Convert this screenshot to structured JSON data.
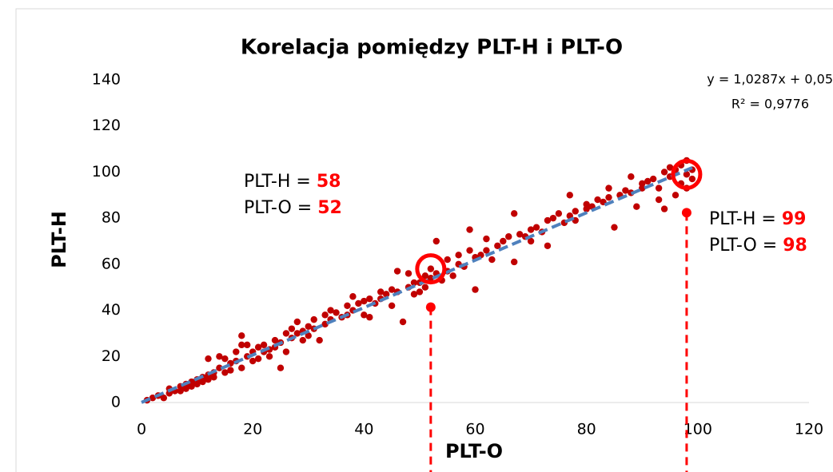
{
  "chart_data": {
    "type": "scatter",
    "title": "Korelacja pomiędzy PLT-H i PLT-O",
    "x_label": "PLT-O",
    "y_label": "PLT-H",
    "xlim": [
      0,
      120
    ],
    "ylim": [
      0,
      140
    ],
    "xticks": [
      0,
      20,
      40,
      60,
      80,
      {
        "value": 100,
        "label": "100"
      },
      120
    ],
    "yticks": [
      0,
      20,
      40,
      60,
      80,
      100,
      120,
      140
    ],
    "color": "#c00000",
    "x": [
      1,
      2,
      3,
      4,
      5,
      5,
      6,
      7,
      7,
      8,
      8,
      9,
      9,
      10,
      10,
      11,
      11,
      12,
      12,
      12,
      13,
      13,
      14,
      14,
      15,
      15,
      16,
      16,
      17,
      17,
      18,
      18,
      18,
      19,
      19,
      20,
      20,
      21,
      21,
      22,
      22,
      23,
      23,
      24,
      24,
      25,
      25,
      26,
      26,
      27,
      27,
      28,
      28,
      29,
      29,
      30,
      30,
      31,
      31,
      32,
      33,
      33,
      34,
      34,
      35,
      36,
      37,
      37,
      38,
      38,
      39,
      40,
      40,
      41,
      41,
      42,
      43,
      43,
      44,
      45,
      45,
      46,
      46,
      47,
      48,
      48,
      49,
      49,
      50,
      50,
      51,
      51,
      52,
      52,
      53,
      53,
      54,
      55,
      55,
      56,
      57,
      57,
      58,
      59,
      59,
      60,
      60,
      61,
      62,
      62,
      63,
      64,
      65,
      66,
      67,
      67,
      68,
      69,
      70,
      70,
      71,
      72,
      73,
      73,
      74,
      75,
      76,
      77,
      77,
      78,
      78,
      80,
      80,
      81,
      82,
      83,
      84,
      84,
      85,
      86,
      87,
      88,
      88,
      89,
      90,
      90,
      91,
      92,
      93,
      93,
      94,
      94,
      95,
      95,
      96,
      96,
      97,
      97,
      98,
      98,
      98,
      99,
      99
    ],
    "y": [
      1,
      2,
      3,
      2,
      4,
      6,
      5,
      7,
      5,
      8,
      6,
      9,
      7,
      10,
      8,
      11,
      9,
      12,
      10,
      19,
      13,
      11,
      15,
      20,
      13,
      19,
      17,
      14,
      22,
      18,
      29,
      25,
      15,
      20,
      25,
      18,
      22,
      24,
      19,
      25,
      22,
      23,
      20,
      27,
      24,
      15,
      26,
      30,
      22,
      32,
      28,
      35,
      30,
      31,
      27,
      33,
      29,
      36,
      32,
      27,
      38,
      34,
      40,
      36,
      39,
      37,
      42,
      38,
      40,
      46,
      43,
      38,
      44,
      45,
      37,
      43,
      48,
      45,
      47,
      49,
      42,
      57,
      48,
      35,
      50,
      56,
      47,
      52,
      52,
      48,
      55,
      50,
      58,
      54,
      70,
      56,
      53,
      57,
      62,
      55,
      60,
      64,
      59,
      66,
      75,
      63,
      49,
      64,
      66,
      71,
      62,
      68,
      70,
      72,
      82,
      61,
      73,
      72,
      75,
      70,
      76,
      74,
      79,
      68,
      80,
      82,
      78,
      81,
      90,
      83,
      79,
      84,
      86,
      85,
      88,
      87,
      93,
      89,
      76,
      90,
      92,
      91,
      98,
      85,
      95,
      93,
      96,
      97,
      93,
      88,
      100,
      84,
      102,
      98,
      101,
      90,
      103,
      95,
      99,
      105,
      93,
      97,
      101
    ],
    "trendline": {
      "slope": 1.0287,
      "intercept": 0.05,
      "color": "#4f81bd",
      "equation": "y = 1,0287x + 0,05",
      "r2": "R² = 0,9776"
    },
    "annotations": [
      {
        "h_label": "PLT-H = ",
        "h_value": 58,
        "o_label": "PLT-O = ",
        "o_value": 52
      },
      {
        "h_label": "PLT-H = ",
        "h_value": 99,
        "o_label": "PLT-O = ",
        "o_value": 98
      }
    ],
    "highlight_color": "#ff0000"
  }
}
